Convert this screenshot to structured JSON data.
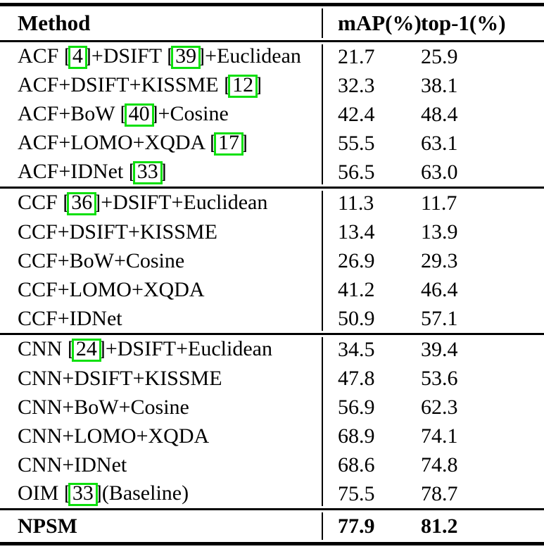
{
  "colors": {
    "citation_box": "#0ce00c",
    "text": "#000000",
    "background": "#ffffff"
  },
  "table": {
    "header": {
      "method": "Method",
      "map": "mAP(%)",
      "top1": "top-1(%)"
    },
    "sections": [
      {
        "rows": [
          {
            "pre": "ACF [",
            "cite1": "4",
            "mid": "]+DSIFT [",
            "cite2": "39",
            "post": "]+Euclidean",
            "map": "21.7",
            "top1": "25.9"
          },
          {
            "pre": "ACF+DSIFT+KISSME [",
            "cite1": "12",
            "post": "]",
            "map": "32.3",
            "top1": "38.1"
          },
          {
            "pre": "ACF+BoW [",
            "cite1": "40",
            "post": "]+Cosine",
            "map": "42.4",
            "top1": "48.4"
          },
          {
            "pre": "ACF+LOMO+XQDA [",
            "cite1": "17",
            "post": "]",
            "map": "55.5",
            "top1": "63.1"
          },
          {
            "pre": "ACF+IDNet [",
            "cite1": "33",
            "post": "]",
            "map": "56.5",
            "top1": "63.0"
          }
        ]
      },
      {
        "rows": [
          {
            "pre": "CCF [",
            "cite1": "36",
            "post": "]+DSIFT+Euclidean",
            "map": "11.3",
            "top1": "11.7"
          },
          {
            "pre": "CCF+DSIFT+KISSME",
            "map": "13.4",
            "top1": "13.9"
          },
          {
            "pre": "CCF+BoW+Cosine",
            "map": "26.9",
            "top1": "29.3"
          },
          {
            "pre": "CCF+LOMO+XQDA",
            "map": "41.2",
            "top1": "46.4"
          },
          {
            "pre": "CCF+IDNet",
            "map": "50.9",
            "top1": "57.1"
          }
        ]
      },
      {
        "rows": [
          {
            "pre": "CNN [",
            "cite1": "24",
            "post": "]+DSIFT+Euclidean",
            "map": "34.5",
            "top1": "39.4"
          },
          {
            "pre": "CNN+DSIFT+KISSME",
            "map": "47.8",
            "top1": "53.6"
          },
          {
            "pre": "CNN+BoW+Cosine",
            "map": "56.9",
            "top1": "62.3"
          },
          {
            "pre": "CNN+LOMO+XQDA",
            "map": "68.9",
            "top1": "74.1"
          },
          {
            "pre": "CNN+IDNet",
            "map": "68.6",
            "top1": "74.8"
          },
          {
            "pre": "OIM [",
            "cite1": "33",
            "post": "](Baseline)",
            "map": "75.5",
            "top1": "78.7"
          }
        ]
      }
    ],
    "footer_row": {
      "pre": "NPSM",
      "map": "77.9",
      "top1": "81.2"
    }
  }
}
